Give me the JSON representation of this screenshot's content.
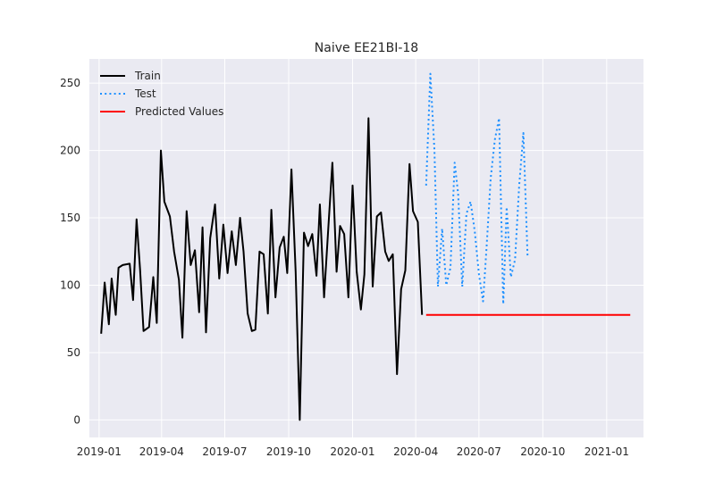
{
  "chart_data": {
    "type": "line",
    "title": "Naive EE21BI-18",
    "xlabel": "",
    "ylabel": "",
    "x_axis_type": "date",
    "xlim": [
      "2018-12-18",
      "2021-02-23"
    ],
    "ylim": [
      -13,
      268
    ],
    "grid": true,
    "legend_position": "top-left",
    "x_ticks": [
      "2019-01",
      "2019-04",
      "2019-07",
      "2019-10",
      "2020-01",
      "2020-04",
      "2020-07",
      "2020-10",
      "2021-01"
    ],
    "y_ticks": [
      0,
      50,
      100,
      150,
      200,
      250
    ],
    "colors": {
      "background": "#eaeaf2",
      "grid": "#ffffff",
      "train": "#000000",
      "test": "#1e90ff",
      "predicted": "#ff0000",
      "text": "#262626"
    },
    "series": [
      {
        "name": "Train",
        "style": "solid",
        "points": [
          [
            "2019-01-04",
            64
          ],
          [
            "2019-01-09",
            102
          ],
          [
            "2019-01-15",
            71
          ],
          [
            "2019-01-19",
            105
          ],
          [
            "2019-01-25",
            78
          ],
          [
            "2019-01-29",
            113
          ],
          [
            "2019-02-04",
            115
          ],
          [
            "2019-02-14",
            116
          ],
          [
            "2019-02-19",
            89
          ],
          [
            "2019-02-24",
            149
          ],
          [
            "2019-03-01",
            112
          ],
          [
            "2019-03-06",
            66
          ],
          [
            "2019-03-14",
            69
          ],
          [
            "2019-03-20",
            106
          ],
          [
            "2019-03-25",
            72
          ],
          [
            "2019-03-31",
            200
          ],
          [
            "2019-04-05",
            162
          ],
          [
            "2019-04-13",
            151
          ],
          [
            "2019-04-19",
            125
          ],
          [
            "2019-04-26",
            104
          ],
          [
            "2019-05-01",
            61
          ],
          [
            "2019-05-07",
            155
          ],
          [
            "2019-05-13",
            115
          ],
          [
            "2019-05-19",
            126
          ],
          [
            "2019-05-25",
            80
          ],
          [
            "2019-05-30",
            143
          ],
          [
            "2019-06-04",
            65
          ],
          [
            "2019-06-10",
            135
          ],
          [
            "2019-06-17",
            160
          ],
          [
            "2019-06-23",
            105
          ],
          [
            "2019-06-29",
            145
          ],
          [
            "2019-07-05",
            109
          ],
          [
            "2019-07-11",
            140
          ],
          [
            "2019-07-17",
            115
          ],
          [
            "2019-07-23",
            150
          ],
          [
            "2019-07-28",
            125
          ],
          [
            "2019-08-03",
            79
          ],
          [
            "2019-08-09",
            66
          ],
          [
            "2019-08-14",
            67
          ],
          [
            "2019-08-20",
            125
          ],
          [
            "2019-08-26",
            123
          ],
          [
            "2019-09-01",
            79
          ],
          [
            "2019-09-06",
            156
          ],
          [
            "2019-09-12",
            91
          ],
          [
            "2019-09-18",
            128
          ],
          [
            "2019-09-24",
            136
          ],
          [
            "2019-09-29",
            109
          ],
          [
            "2019-10-05",
            186
          ],
          [
            "2019-10-11",
            110
          ],
          [
            "2019-10-17",
            0
          ],
          [
            "2019-10-23",
            139
          ],
          [
            "2019-10-29",
            129
          ],
          [
            "2019-11-04",
            138
          ],
          [
            "2019-11-10",
            107
          ],
          [
            "2019-11-15",
            160
          ],
          [
            "2019-11-21",
            91
          ],
          [
            "2019-11-27",
            142
          ],
          [
            "2019-12-03",
            191
          ],
          [
            "2019-12-09",
            110
          ],
          [
            "2019-12-14",
            144
          ],
          [
            "2019-12-20",
            138
          ],
          [
            "2019-12-26",
            91
          ],
          [
            "2020-01-01",
            174
          ],
          [
            "2020-01-07",
            110
          ],
          [
            "2020-01-13",
            82
          ],
          [
            "2020-01-18",
            108
          ],
          [
            "2020-01-24",
            224
          ],
          [
            "2020-01-30",
            99
          ],
          [
            "2020-02-05",
            151
          ],
          [
            "2020-02-11",
            154
          ],
          [
            "2020-02-17",
            125
          ],
          [
            "2020-02-22",
            118
          ],
          [
            "2020-02-28",
            123
          ],
          [
            "2020-03-05",
            34
          ],
          [
            "2020-03-11",
            97
          ],
          [
            "2020-03-17",
            111
          ],
          [
            "2020-03-23",
            190
          ],
          [
            "2020-03-28",
            155
          ],
          [
            "2020-04-04",
            147
          ],
          [
            "2020-04-10",
            78
          ]
        ]
      },
      {
        "name": "Test",
        "style": "dotted",
        "points": [
          [
            "2020-04-16",
            174
          ],
          [
            "2020-04-22",
            257
          ],
          [
            "2020-04-28",
            200
          ],
          [
            "2020-05-03",
            99
          ],
          [
            "2020-05-09",
            142
          ],
          [
            "2020-05-15",
            100
          ],
          [
            "2020-05-21",
            113
          ],
          [
            "2020-05-27",
            191
          ],
          [
            "2020-06-01",
            168
          ],
          [
            "2020-06-07",
            99
          ],
          [
            "2020-06-13",
            153
          ],
          [
            "2020-06-19",
            162
          ],
          [
            "2020-06-25",
            140
          ],
          [
            "2020-07-01",
            108
          ],
          [
            "2020-07-07",
            88
          ],
          [
            "2020-07-12",
            128
          ],
          [
            "2020-07-18",
            180
          ],
          [
            "2020-07-24",
            208
          ],
          [
            "2020-07-30",
            224
          ],
          [
            "2020-08-05",
            86
          ],
          [
            "2020-08-10",
            158
          ],
          [
            "2020-08-16",
            106
          ],
          [
            "2020-08-22",
            119
          ],
          [
            "2020-08-28",
            174
          ],
          [
            "2020-09-03",
            213
          ],
          [
            "2020-09-09",
            121
          ]
        ]
      },
      {
        "name": "Predicted Values",
        "style": "solid",
        "points": [
          [
            "2020-04-16",
            78
          ],
          [
            "2021-02-04",
            78
          ]
        ]
      }
    ]
  }
}
